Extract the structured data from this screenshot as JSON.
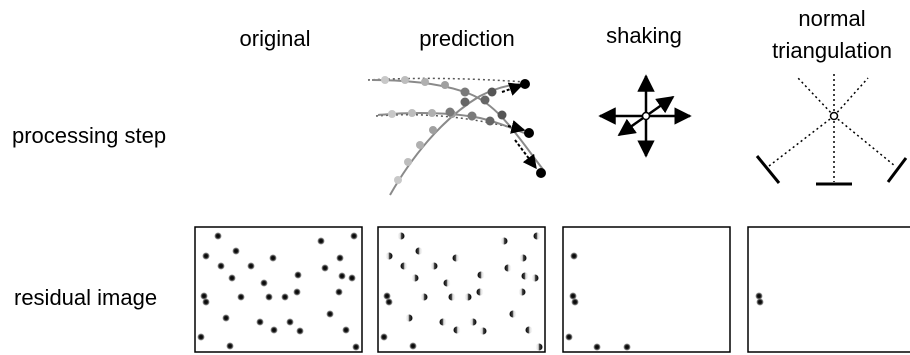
{
  "columns": [
    {
      "id": "original",
      "title_lines": [
        "original"
      ]
    },
    {
      "id": "prediction",
      "title_lines": [
        "prediction"
      ]
    },
    {
      "id": "shaking",
      "title_lines": [
        "shaking"
      ]
    },
    {
      "id": "normal_triangulation",
      "title_lines": [
        "normal",
        "triangulation"
      ]
    }
  ],
  "rows": {
    "processing_step": "processing step",
    "residual_image": "residual image"
  },
  "colors": {
    "particle_dark": "#222222",
    "trajectory_gray": "#8a8a8a",
    "box_border": "#000000"
  }
}
